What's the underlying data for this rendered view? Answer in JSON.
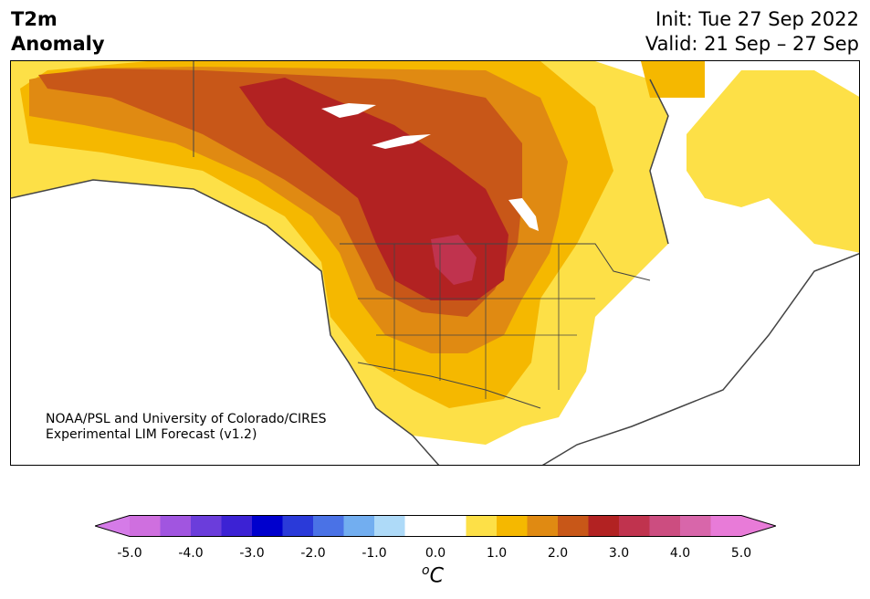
{
  "header": {
    "title_line1": "T2m",
    "title_line2": "Anomaly",
    "init": "Init: Tue 27 Sep 2022",
    "valid": "Valid: 21 Sep – 27 Sep"
  },
  "credit": {
    "line1": "NOAA/PSL and University of Colorado/CIRES",
    "line2": "Experimental LIM Forecast (v1.2)"
  },
  "colorbar": {
    "unit": "C",
    "unit_prefix": "o",
    "ticks": [
      "-5.0",
      "-4.0",
      "-3.0",
      "-2.0",
      "-1.0",
      "0.0",
      "1.0",
      "2.0",
      "3.0",
      "4.0",
      "5.0"
    ],
    "colors": [
      "#cf6fdf",
      "#a155e0",
      "#6b3ddb",
      "#3c22d4",
      "#0000cd",
      "#2a3ad9",
      "#4a72e6",
      "#72aef0",
      "#aedaf8",
      "#ffffff",
      "#ffffff",
      "#fde047",
      "#f5b800",
      "#e08a12",
      "#c85718",
      "#b22222",
      "#c0334e",
      "#cc4d80",
      "#d866aa",
      "#e87bd8"
    ],
    "under_color": "#d57be8",
    "over_color": "#e87bd8"
  },
  "map": {
    "region": "North America",
    "anomaly_colors": {
      "0.5-1.0": "#fde047",
      "1.0-1.5": "#f5b800",
      "1.5-2.0": "#e08a12",
      "2.0-2.5": "#c85718",
      "2.5-3.0": "#b22222",
      "3.0-3.5": "#c0334e"
    }
  }
}
